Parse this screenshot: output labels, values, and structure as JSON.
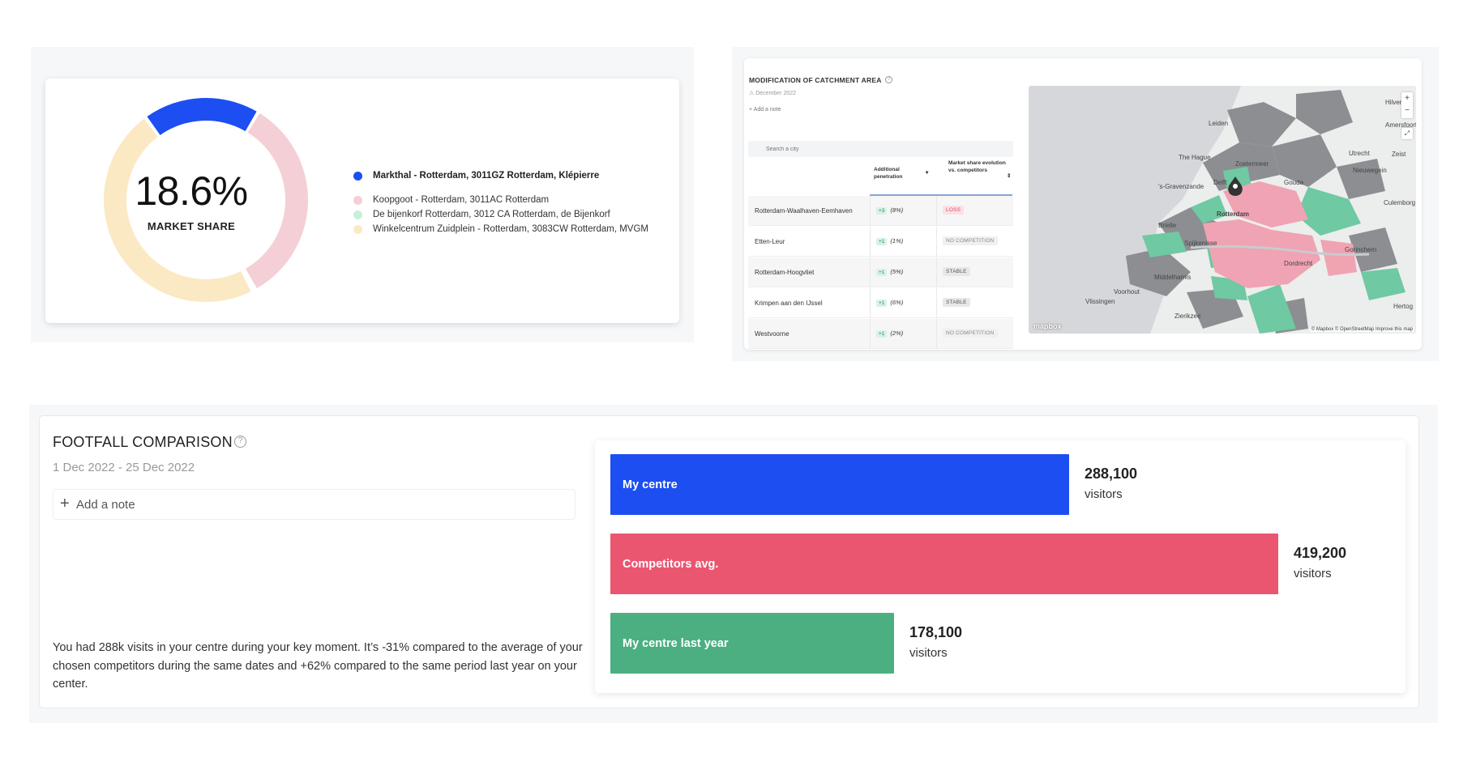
{
  "market_share": {
    "value": "18.6%",
    "label": "MARKET SHARE",
    "legend": [
      {
        "name": "Markthal - Rotterdam, 3011GZ Rotterdam, Klépierre",
        "color": "#1d4ef2",
        "bold": true
      },
      {
        "name": "Koopgoot - Rotterdam, 3011AC Rotterdam",
        "color": "#f5cfd6"
      },
      {
        "name": "De bijenkorf Rotterdam, 3012 CA Rotterdam, de Bijenkorf",
        "color": "#c9efd9"
      },
      {
        "name": "Winkelcentrum Zuidplein - Rotterdam, 3083CW Rotterdam, MVGM",
        "color": "#fbe9c4"
      }
    ]
  },
  "chart_data": [
    {
      "type": "pie",
      "categories": [
        "Markthal - Rotterdam, 3011GZ Rotterdam, Klépierre",
        "Koopgoot - Rotterdam, 3011AC Rotterdam",
        "De bijenkorf Rotterdam, 3012 CA Rotterdam, de Bijenkorf",
        "Winkelcentrum Zuidplein - Rotterdam, 3083CW Rotterdam, MVGM"
      ],
      "values": [
        18.6,
        33.4,
        0.5,
        47.5
      ],
      "title": "18.6%",
      "subtitle": "MARKET SHARE",
      "colors": [
        "#1d4ef2",
        "#f5cfd6",
        "#c9efd9",
        "#fbe9c4"
      ],
      "legend": "right"
    },
    {
      "type": "bar",
      "orientation": "horizontal",
      "categories": [
        "My centre",
        "Competitors avg.",
        "My centre last year"
      ],
      "values": [
        288100,
        419200,
        178100
      ],
      "value_labels": [
        "288,100",
        "419,200",
        "178,100"
      ],
      "unit": "visitors",
      "colors": [
        "#1d4ef2",
        "#ea5670",
        "#4caf82"
      ],
      "xlim": [
        0,
        419200
      ]
    }
  ],
  "catchment": {
    "title": "MODIFICATION OF CATCHMENT AREA",
    "date": "December 2022",
    "add_note": "+ Add a note",
    "search_placeholder": "Search a city",
    "col_penetration": "Additional penetration",
    "col_market_share": "Market share evolution vs. competitors",
    "rows": [
      {
        "city": "Rotterdam-Waalhaven-Eemhaven",
        "pen": "+3",
        "pct": "(8%)",
        "status": "LOSS",
        "kind": "loss"
      },
      {
        "city": "Etten-Leur",
        "pen": "+1",
        "pct": "(1%)",
        "status": "NO COMPETITION",
        "kind": "none"
      },
      {
        "city": "Rotterdam-Hoogvliet",
        "pen": "+1",
        "pct": "(5%)",
        "status": "STABLE",
        "kind": "stable"
      },
      {
        "city": "Krimpen aan den IJssel",
        "pen": "+1",
        "pct": "(6%)",
        "status": "STABLE",
        "kind": "stable"
      },
      {
        "city": "Westvoorne",
        "pen": "+1",
        "pct": "(2%)",
        "status": "NO COMPETITION",
        "kind": "none"
      }
    ],
    "map": {
      "labels": [
        "Leiden",
        "Hilversu",
        "The Hague",
        "Zoetermeer",
        "Utrecht",
        "Zeist",
        "Nieuwegein",
        "Delft",
        "Gouda",
        "Rotterdam",
        "Culemborg",
        "Brielle",
        "Spijkenisse",
        "Gorinchem",
        "Dordrecht",
        "Middelharnis",
        "Hertog",
        "Zierikzee",
        "Vlissingen",
        "Voorhout",
        "Amersfoort",
        "'s-Gravenzande"
      ],
      "logo": "mapbox",
      "attribution": "© Mapbox © OpenStreetMap  Improve this map"
    }
  },
  "footfall": {
    "title": "FOOTFALL COMPARISON",
    "date": "1 Dec 2022 - 25 Dec 2022",
    "add_note": "Add a note",
    "description": "You had 288k visits in your centre during your key moment. It’s -31% compared to the average of your chosen competitors during the same dates and +62% compared to the same period last year on your center.",
    "unit": "visitors",
    "bars": [
      {
        "label": "My centre",
        "value": 288100,
        "value_label": "288,100",
        "color": "#1d4ef2"
      },
      {
        "label": "Competitors avg.",
        "value": 419200,
        "value_label": "419,200",
        "color": "#ea5670"
      },
      {
        "label": "My centre last year",
        "value": 178100,
        "value_label": "178,100",
        "color": "#4caf82"
      }
    ]
  }
}
